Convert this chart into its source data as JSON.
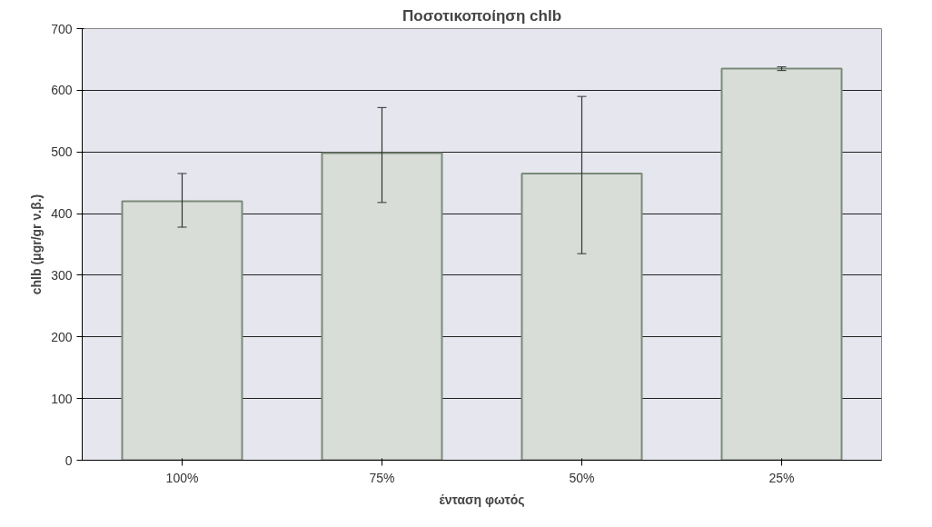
{
  "chart_data": {
    "type": "bar",
    "title": "Ποσοτικοποίηση chlb",
    "xlabel": "ένταση φωτός",
    "ylabel": "chlb (μgr/gr ν.β.)",
    "categories": [
      "100%",
      "75%",
      "50%",
      "25%"
    ],
    "values": [
      420,
      498,
      465,
      635
    ],
    "errors": [
      [
        378,
        465
      ],
      [
        418,
        572
      ],
      [
        335,
        590
      ],
      [
        632,
        638
      ]
    ],
    "color": "#d8ddd8",
    "ylim": [
      0,
      700
    ],
    "yticks": [
      0,
      100,
      200,
      300,
      400,
      500,
      600,
      700
    ],
    "grid": "y"
  }
}
